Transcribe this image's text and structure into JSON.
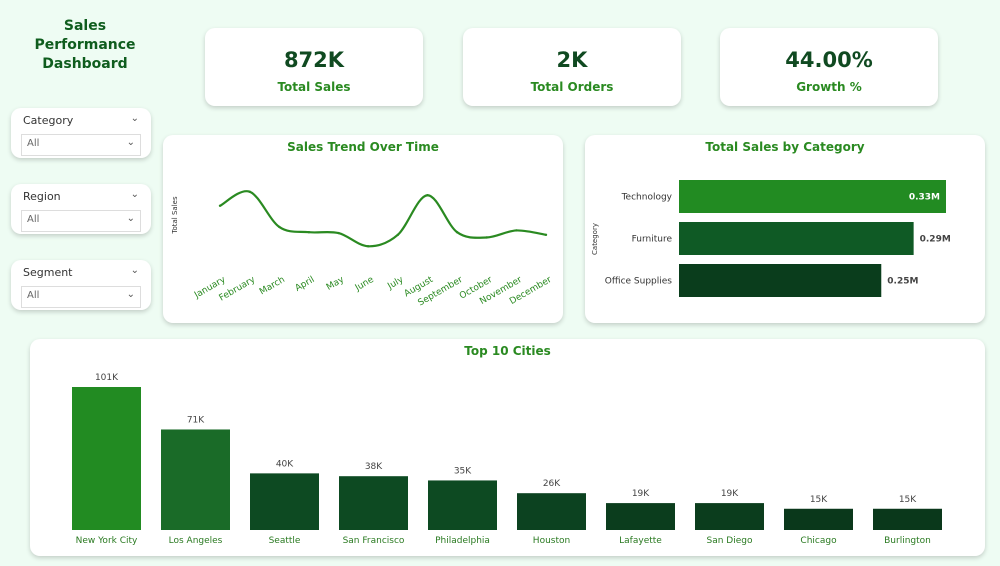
{
  "dashboard": {
    "title_line1": "Sales",
    "title_line2": "Performance",
    "title_line3": "Dashboard"
  },
  "kpis": [
    {
      "value": "872K",
      "label": "Total Sales"
    },
    {
      "value": "2K",
      "label": "Total Orders"
    },
    {
      "value": "44.00%",
      "label": "Growth %"
    }
  ],
  "slicers": [
    {
      "label": "Category",
      "value": "All"
    },
    {
      "label": "Region",
      "value": "All"
    },
    {
      "label": "Segment",
      "value": "All"
    }
  ],
  "colors": {
    "accent": "#2a8a21",
    "dark_green": "#0a3d1c",
    "background": "#eefcf3"
  },
  "chart_data": [
    {
      "type": "line",
      "title": "Sales Trend Over Time",
      "ylabel": "Total Sales",
      "xlabel": "",
      "categories": [
        "January",
        "February",
        "March",
        "April",
        "May",
        "June",
        "July",
        "August",
        "September",
        "October",
        "November",
        "December"
      ],
      "values": [
        65,
        81,
        41,
        35,
        34,
        19,
        32,
        77,
        35,
        29,
        37,
        32
      ],
      "ylim": [
        0,
        100
      ],
      "color": "#2a8a21"
    },
    {
      "type": "bar",
      "orientation": "horizontal",
      "title": "Total Sales by Category",
      "ylabel": "Category",
      "categories": [
        "Technology",
        "Furniture",
        "Office Supplies"
      ],
      "values": [
        0.33,
        0.29,
        0.25
      ],
      "value_labels": [
        "0.33M",
        "0.29M",
        "0.25M"
      ],
      "colors": [
        "#228b22",
        "#0f5a25",
        "#0a3d1c"
      ]
    },
    {
      "type": "bar",
      "title": "Top 10 Cities",
      "categories": [
        "New York City",
        "Los Angeles",
        "Seattle",
        "San Francisco",
        "Philadelphia",
        "Houston",
        "Lafayette",
        "San Diego",
        "Chicago",
        "Burlington"
      ],
      "values": [
        101,
        71,
        40,
        38,
        35,
        26,
        19,
        19,
        15,
        15
      ],
      "value_labels": [
        "101K",
        "71K",
        "40K",
        "38K",
        "35K",
        "26K",
        "19K",
        "19K",
        "15K",
        "15K"
      ],
      "colors": [
        "#228b22",
        "#1a6b28",
        "#0d4a22",
        "#0d4a22",
        "#0d4a22",
        "#0c4220",
        "#0b3d1d",
        "#0b3d1d",
        "#0a381b",
        "#0a381b"
      ]
    }
  ]
}
